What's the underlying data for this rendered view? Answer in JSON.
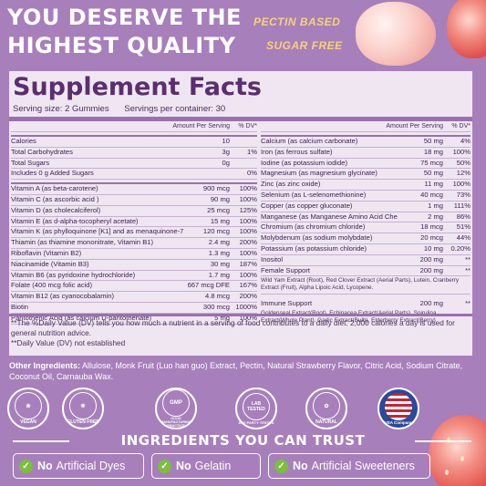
{
  "hero": {
    "line1": "YOU DESERVE THE",
    "line2": "HIGHEST QUALITY"
  },
  "tags": {
    "pectin": "PECTIN BASED",
    "sugar": "SUGAR FREE"
  },
  "facts": {
    "title": "Supplement Facts",
    "serving_size": "Serving size: 2 Gummies",
    "servings_per_container": "Servings per container: 30",
    "header_amount": "Amount Per Serving",
    "header_dv": "% DV*",
    "left_top": [
      {
        "name": "Calories",
        "amount": "10",
        "dv": ""
      },
      {
        "name": "Total Carbohydrates",
        "amount": "3g",
        "dv": "1%"
      },
      {
        "name": "Total Sugars",
        "amount": "0g",
        "dv": ""
      },
      {
        "name": "Includes 0 g Added Sugars",
        "amount": "",
        "dv": "0%"
      }
    ],
    "left_vitamins": [
      {
        "name": "Vitamin A (as beta-carotene)",
        "amount": "900 mcg",
        "dv": "100%"
      },
      {
        "name": "Vitamin C (as ascorbic acid )",
        "amount": "90 mg",
        "dv": "100%"
      },
      {
        "name": "Vitamin D (as cholecalciferol)",
        "amount": "25 mcg",
        "dv": "125%"
      },
      {
        "name": "Vitamin E (as d-alpha-tocopheryl acetate)",
        "amount": "15 mg",
        "dv": "100%"
      },
      {
        "name": "Vitamin K (as phylloquinone [K1] and as menaquinone-7 [K2])",
        "amount": "120 mcg",
        "dv": "100%"
      },
      {
        "name": "Thiamin (as thiamine mononitrate, Vitamin B1)",
        "amount": "2.4 mg",
        "dv": "200%"
      },
      {
        "name": "Riboflavin (Vitamin B2)",
        "amount": "1.3 mg",
        "dv": "100%"
      },
      {
        "name": "Niacinamide (Vitamin B3)",
        "amount": "30 mg",
        "dv": "187%"
      },
      {
        "name": "Vitamin B6 (as pyridoxine hydrochloride)",
        "amount": "1.7 mg",
        "dv": "100%"
      },
      {
        "name": "Folate (400 mcg folic acid)",
        "amount": "667 mcg DFE",
        "dv": "167%"
      },
      {
        "name": "Vitamin B12 (as cyanocobalamin)",
        "amount": "4.8 mcg",
        "dv": "200%"
      },
      {
        "name": "Biotin",
        "amount": "300 mcg",
        "dv": "1000%"
      },
      {
        "name": "Pantothenic Acid (as calcium D-pantothenate)",
        "amount": "5 mg",
        "dv": "100%"
      }
    ],
    "right_minerals": [
      {
        "name": "Calcium (as calcium carbonate)",
        "amount": "50 mg",
        "dv": "4%"
      },
      {
        "name": "Iron (as ferrous sulfate)",
        "amount": "18 mg",
        "dv": "100%"
      },
      {
        "name": "Iodine (as potassium iodide)",
        "amount": "75 mcg",
        "dv": "50%"
      },
      {
        "name": "Magnesium (as magnesium glycinate)",
        "amount": "50 mg",
        "dv": "12%"
      },
      {
        "name": "Zinc (as zinc oxide)",
        "amount": "11 mg",
        "dv": "100%"
      },
      {
        "name": "Selenium (as L-selenomethionine)",
        "amount": "40 mcg",
        "dv": "73%"
      },
      {
        "name": "Copper (as copper gluconate)",
        "amount": "1 mg",
        "dv": "111%"
      },
      {
        "name": "Manganese (as Manganese Amino Acid Chelate)",
        "amount": "2 mg",
        "dv": "86%"
      },
      {
        "name": "Chromium (as chromium chloride)",
        "amount": "18 mcg",
        "dv": "51%"
      },
      {
        "name": "Molybdenum (as sodium molybdate)",
        "amount": "20 mcg",
        "dv": "44%"
      },
      {
        "name": "Potassium (as potassium chloride)",
        "amount": "10 mg",
        "dv": "0.20%"
      },
      {
        "name": "Inositol",
        "amount": "200 mg",
        "dv": "**"
      }
    ],
    "female_support": {
      "name": "Female Support",
      "amount": "200 mg",
      "dv": "**",
      "detail": "Wild Yam Extract (Root), Red Clover Extract (Aerial Parts), Lutein, Cranberry Extract (Fruit), Alpha Lipoic Acid, Lycopene."
    },
    "immune_support": {
      "name": "Immune Support",
      "amount": "200 mg",
      "dv": "**",
      "detail": "Goldenseal Extract(Root), Echinacea Extract(Aerial Parts), Spirulina Extract(Whole Plant), Garlic Extract(Bulb), Elderberry Extract(Berry)"
    },
    "footnote1": "**The %Daily Value (DV) tells you how much a nutrient in a serving of food contributes to a daily diet. 2,000 calories a day is used for general nutrition advice.",
    "footnote2": "**Daily Value (DV) not established"
  },
  "other": {
    "label": "Other Ingredients:",
    "text": " Allulose, Monk Fruit (Luo han guo) Extract, Pectin, Natural Strawberry Flavor, Citric Acid, Sodium Citrate, Coconut Oil, Carnauba Wax."
  },
  "badges": [
    {
      "outer": "VEGAN",
      "inner": "VEGAN"
    },
    {
      "outer": "GLUTEN FREE",
      "inner": "GLUTEN FREE"
    },
    {
      "outer": "GOOD MANUFACTURING PRACTICE",
      "inner": "GMP"
    },
    {
      "outer": "3RD PARTY TESTED",
      "inner": "LAB TESTED"
    },
    {
      "outer": "NATURAL",
      "inner": "NATURAL"
    },
    {
      "outer": "USA Company",
      "inner": ""
    }
  ],
  "trust_title": "INGREDIENTS YOU CAN TRUST",
  "claims": [
    {
      "bold": "No",
      "rest": "Artificial Dyes"
    },
    {
      "bold": "No",
      "rest": "Gelatin"
    },
    {
      "bold": "No",
      "rest": "Artificial Sweeteners"
    }
  ],
  "colors": {
    "background": "#a77fbb",
    "panel": "#efe6f2",
    "title": "#5b2e6e",
    "accent": "#f7d27a",
    "check": "#7bbf3a"
  }
}
